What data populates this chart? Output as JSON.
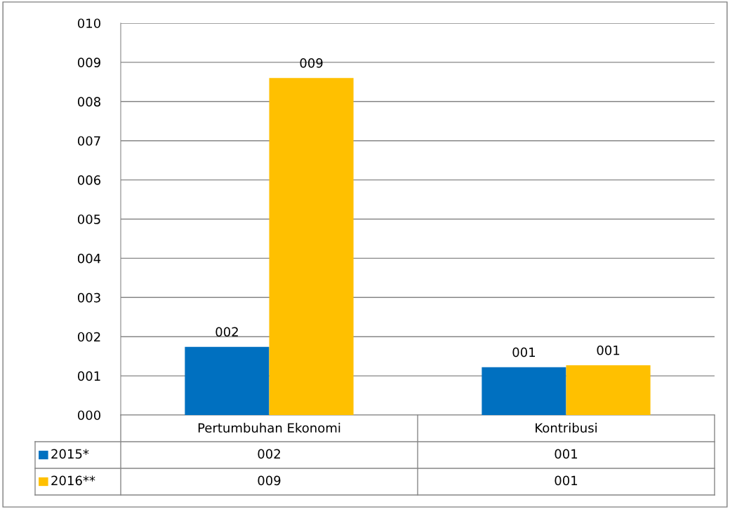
{
  "chart_data": {
    "type": "bar",
    "categories": [
      "Pertumbuhan Ekonomi",
      "Kontribusi"
    ],
    "series": [
      {
        "name": "2015*",
        "color": "#0070c0",
        "values": [
          1.74,
          1.22
        ],
        "value_labels": [
          "002",
          "001"
        ]
      },
      {
        "name": "2016**",
        "color": "#ffc000",
        "values": [
          8.6,
          1.27
        ],
        "value_labels": [
          "009",
          "001"
        ]
      }
    ],
    "ylim": [
      0,
      10
    ],
    "yticks": [
      {
        "value": 0,
        "label": "000"
      },
      {
        "value": 1,
        "label": "001"
      },
      {
        "value": 2,
        "label": "002"
      },
      {
        "value": 3,
        "label": "003"
      },
      {
        "value": 4,
        "label": "004"
      },
      {
        "value": 5,
        "label": "005"
      },
      {
        "value": 6,
        "label": "006"
      },
      {
        "value": 7,
        "label": "007"
      },
      {
        "value": 8,
        "label": "008"
      },
      {
        "value": 9,
        "label": "009"
      },
      {
        "value": 10,
        "label": "010"
      }
    ],
    "grid": "y",
    "legend": "bottom"
  }
}
